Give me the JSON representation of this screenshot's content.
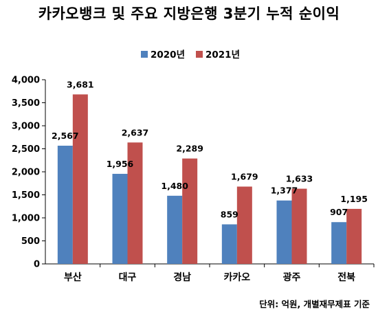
{
  "chart_data": {
    "type": "bar",
    "title": "카카오뱅크 및 주요 지방은행 3분기 누적 순이익",
    "categories": [
      "부산",
      "대구",
      "경남",
      "카카오",
      "광주",
      "전북"
    ],
    "series": [
      {
        "name": "2020년",
        "color": "#4F81BD",
        "values": [
          2567,
          1956,
          1480,
          859,
          1377,
          907
        ]
      },
      {
        "name": "2021년",
        "color": "#C0504D",
        "values": [
          3681,
          2637,
          2289,
          1679,
          1633,
          1195
        ]
      }
    ],
    "value_labels": [
      [
        "2,567",
        "1,956",
        "1,480",
        "859",
        "1,377",
        "907"
      ],
      [
        "3,681",
        "2,637",
        "2,289",
        "1,679",
        "1,633",
        "1,195"
      ]
    ],
    "yticks": [
      0,
      500,
      1000,
      1500,
      2000,
      2500,
      3000,
      3500,
      4000
    ],
    "ytick_labels": [
      "0",
      "500",
      "1,000",
      "1,500",
      "2,000",
      "2,500",
      "3,000",
      "3,500",
      "4,000"
    ],
    "ylim": [
      0,
      4000
    ],
    "grid": false,
    "legend_position": "top-center",
    "source_note": "단위: 억원, 개별재무제표 기준"
  }
}
